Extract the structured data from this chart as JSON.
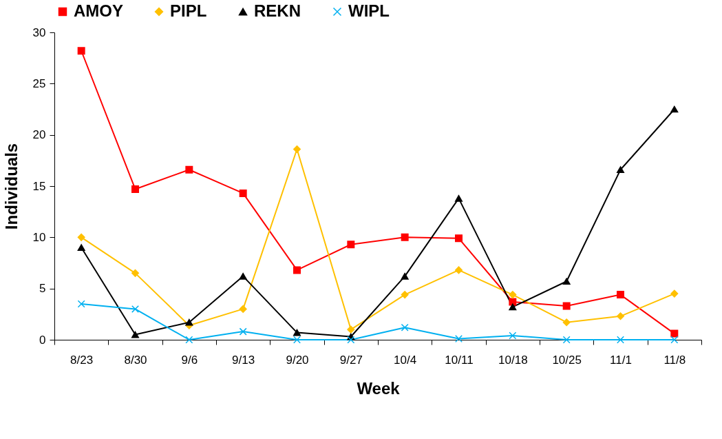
{
  "chart_data": {
    "type": "line",
    "xlabel": "Week",
    "ylabel": "Individuals",
    "categories": [
      "8/23",
      "8/30",
      "9/6",
      "9/13",
      "9/20",
      "9/27",
      "10/4",
      "10/11",
      "10/18",
      "10/25",
      "11/1",
      "11/8"
    ],
    "series": [
      {
        "name": "AMOY",
        "color": "#ff0000",
        "marker": "square",
        "values": [
          28.2,
          14.7,
          16.6,
          14.3,
          6.8,
          9.3,
          10.0,
          9.9,
          3.7,
          3.3,
          4.4,
          0.6
        ]
      },
      {
        "name": "PIPL",
        "color": "#ffc000",
        "marker": "diamond",
        "values": [
          10.0,
          6.5,
          1.4,
          3.0,
          18.6,
          1.0,
          4.4,
          6.8,
          4.4,
          1.7,
          2.3,
          4.5
        ]
      },
      {
        "name": "REKN",
        "color": "#000000",
        "marker": "triangle",
        "values": [
          9.0,
          0.5,
          1.7,
          6.2,
          0.7,
          0.3,
          6.2,
          13.8,
          3.2,
          5.7,
          16.6,
          22.5
        ]
      },
      {
        "name": "WIPL",
        "color": "#00b0f0",
        "marker": "cross",
        "values": [
          3.5,
          3.0,
          0,
          0.8,
          0,
          0,
          1.2,
          0.1,
          0.4,
          0,
          0,
          0
        ]
      }
    ],
    "ylim": [
      0,
      30
    ],
    "yticks": [
      0,
      5,
      10,
      15,
      20,
      25,
      30
    ],
    "grid": false,
    "legend": "top",
    "line_style": "solid"
  }
}
